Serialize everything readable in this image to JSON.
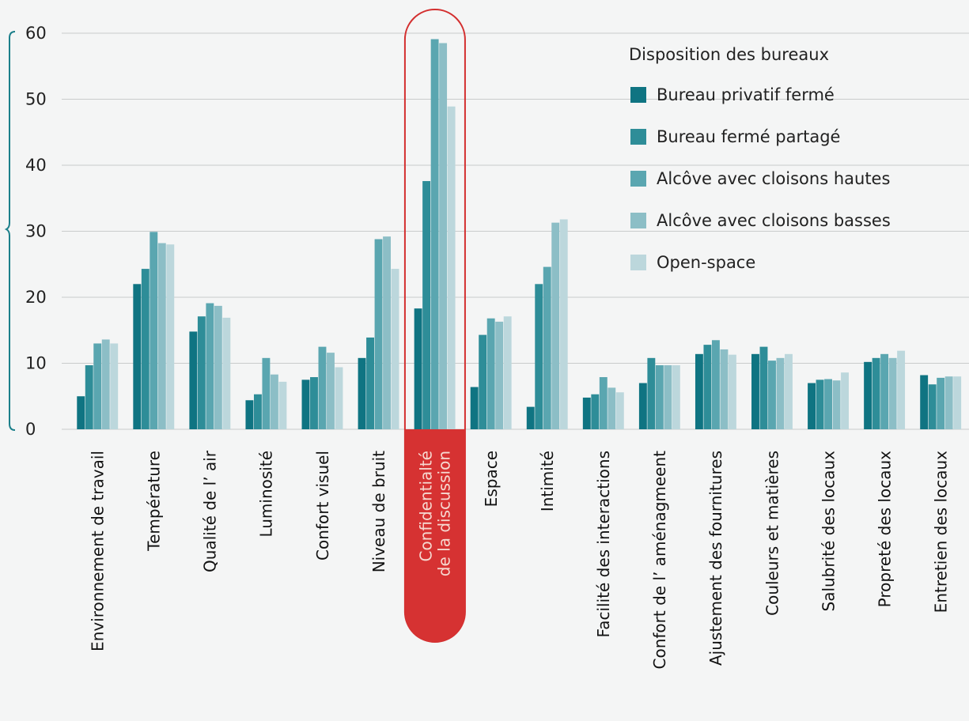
{
  "chart_data": {
    "type": "bar",
    "legend_title": "Disposition des bureaux",
    "legend_position": "top-right",
    "ylim": [
      0,
      60
    ],
    "yticks": [
      0,
      10,
      20,
      30,
      40,
      50,
      60
    ],
    "grid": true,
    "highlight_index": 6,
    "categories": [
      [
        "Environnement de travail"
      ],
      [
        "Température"
      ],
      [
        "Qualité de l’ air"
      ],
      [
        "Luminosité"
      ],
      [
        "Confort visuel"
      ],
      [
        "Niveau de bruit"
      ],
      [
        "Confidentialté",
        "de la discussion"
      ],
      [
        "Espace"
      ],
      [
        "Intimité"
      ],
      [
        "Facilité des interactions"
      ],
      [
        "Confort de l’ aménagmeent"
      ],
      [
        "Ajustement des fournitures"
      ],
      [
        "Couleurs et matières"
      ],
      [
        "Salubrité des locaux"
      ],
      [
        "Propreté des locaux"
      ],
      [
        "Entretien des locaux"
      ]
    ],
    "series": [
      {
        "name": "Bureau privatif fermé",
        "color": "#0f7482",
        "values": [
          5,
          22,
          14.8,
          4.4,
          7.5,
          10.8,
          18.3,
          6.4,
          3.4,
          4.8,
          7,
          11.4,
          11.4,
          7,
          10.2,
          8.2
        ]
      },
      {
        "name": "Bureau fermé partagé",
        "color": "#2e8d98",
        "values": [
          9.7,
          24.3,
          17.1,
          5.3,
          7.9,
          13.9,
          37.6,
          14.3,
          22,
          5.3,
          10.8,
          12.8,
          12.5,
          7.5,
          10.8,
          6.8
        ]
      },
      {
        "name": "Alcôve avec cloisons hautes",
        "color": "#5aa6b0",
        "values": [
          13,
          29.9,
          19.1,
          10.8,
          12.5,
          28.8,
          59.1,
          16.8,
          24.6,
          7.9,
          9.7,
          13.5,
          10.4,
          7.6,
          11.4,
          7.8
        ]
      },
      {
        "name": "Alcôve avec cloisons basses",
        "color": "#8cbec6",
        "values": [
          13.6,
          28.2,
          18.7,
          8.3,
          11.6,
          29.2,
          58.5,
          16.3,
          31.3,
          6.3,
          9.7,
          12.1,
          10.8,
          7.4,
          10.8,
          8
        ]
      },
      {
        "name": "Open-space",
        "color": "#bcd7dc",
        "values": [
          13,
          28,
          16.9,
          7.2,
          9.4,
          24.3,
          48.9,
          17.1,
          31.8,
          5.6,
          9.7,
          11.3,
          11.4,
          8.6,
          11.9,
          8
        ]
      }
    ]
  }
}
